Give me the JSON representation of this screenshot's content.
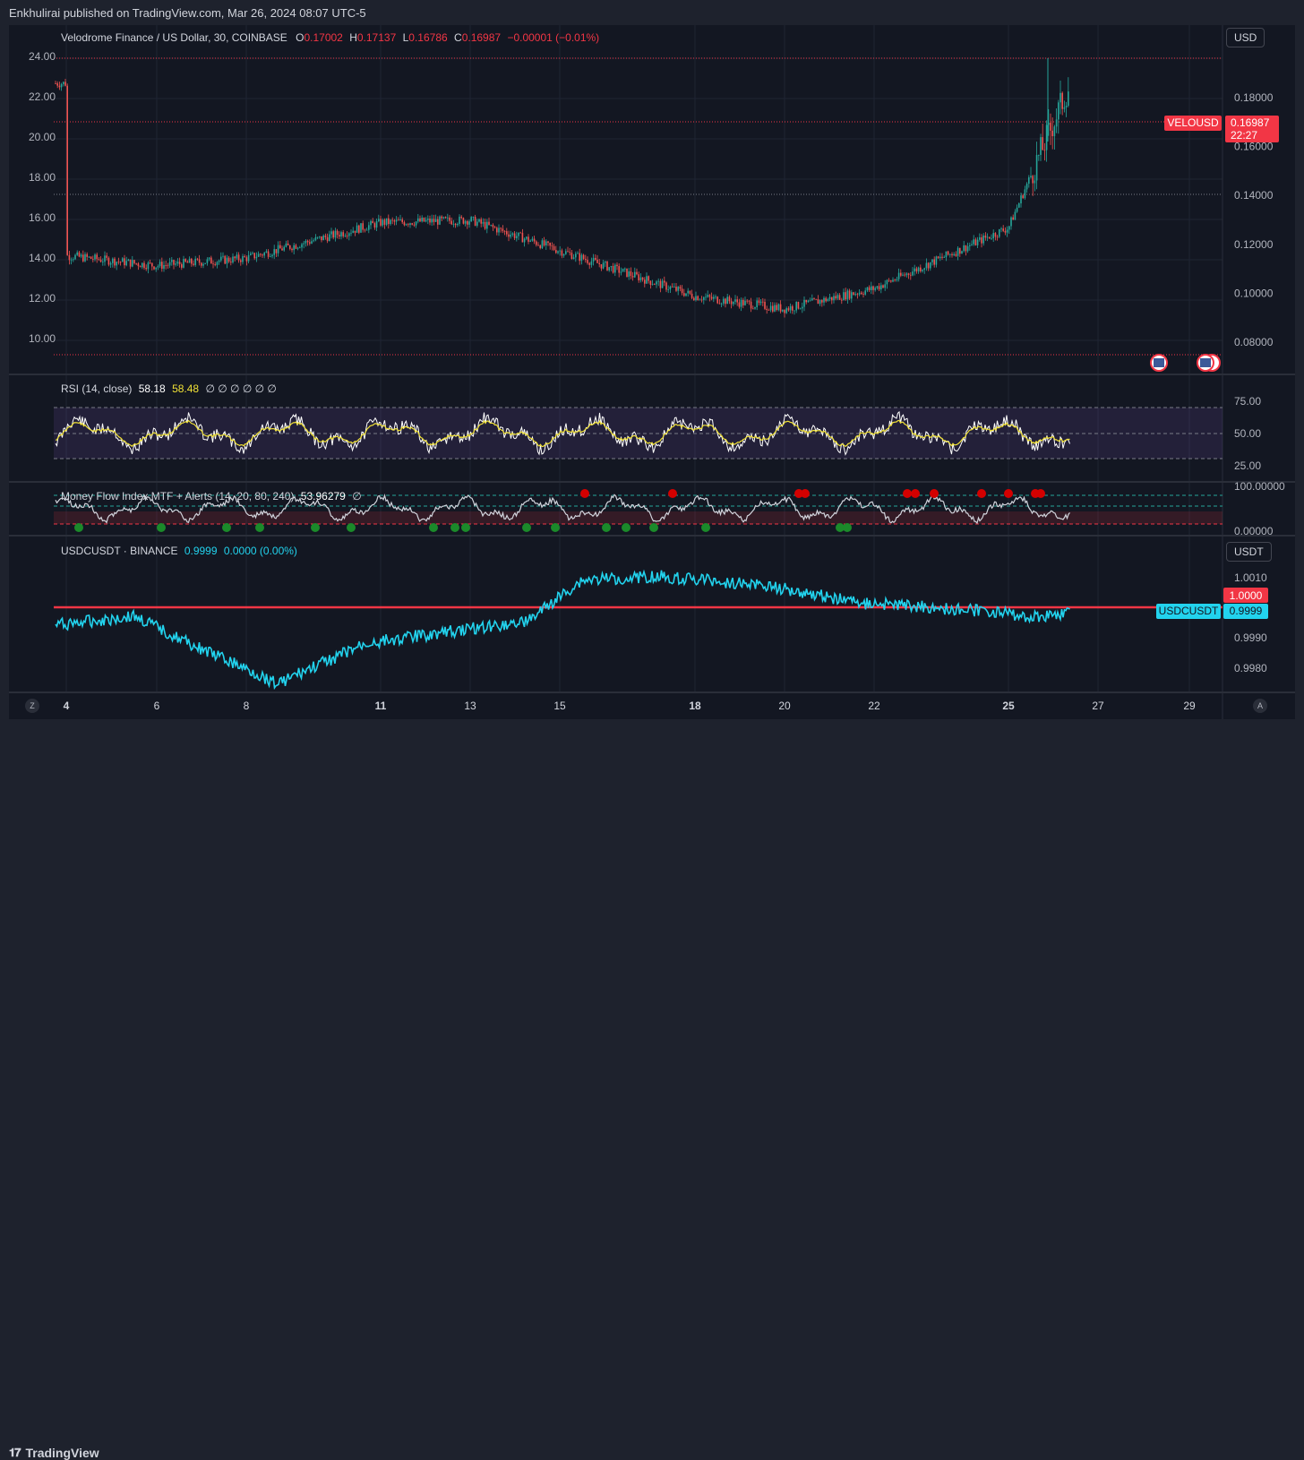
{
  "header": {
    "published": "Enkhulirai published on TradingView.com, Mar 26, 2024 08:07 UTC-5"
  },
  "footer": {
    "brand": "TradingView"
  },
  "colors": {
    "up": "#26a69a",
    "down": "#ef5350",
    "rsi": "#ffffff",
    "rsi_ma": "#f0e136",
    "usdc": "#22d3ee",
    "level": "#f23645"
  },
  "main": {
    "legend": {
      "symbol": "Velodrome Finance / US Dollar, 30, COINBASE",
      "o_lbl": "O",
      "o": "0.17002",
      "h_lbl": "H",
      "h": "0.17137",
      "l_lbl": "L",
      "l": "0.16786",
      "c_lbl": "C",
      "c": "0.16987",
      "chg": "−0.00001 (−0.01%)"
    },
    "currency_button": "USD",
    "left_ticks": [
      "24.00",
      "22.00",
      "20.00",
      "18.00",
      "16.00",
      "14.00",
      "12.00",
      "10.00"
    ],
    "right_ticks": [
      "0.18000",
      "0.16000",
      "0.14000",
      "0.12000",
      "0.10000",
      "0.08000"
    ],
    "symbol_tag": "VELOUSD",
    "price_tag": "0.16987",
    "countdown": "22:27"
  },
  "rsi": {
    "legend": "RSI (14, close)",
    "value": "58.18",
    "ma_value": "58.48",
    "extra": "∅ ∅ ∅ ∅ ∅ ∅",
    "ticks": [
      "75.00",
      "50.00",
      "25.00"
    ]
  },
  "mfi": {
    "legend": "Money Flow Index MTF + Alerts (14, 20, 80, 240)",
    "value": "53.96279",
    "extra": "∅",
    "ticks": [
      "100.00000",
      "0.00000"
    ]
  },
  "usdc": {
    "legend_symbol": "USDCUSDT · BINANCE",
    "value": "0.9999",
    "chg": "0.0000 (0.00%)",
    "currency_button": "USDT",
    "ticks": [
      "1.0010",
      "0.9990",
      "0.9980"
    ],
    "level_tag": "1.0000",
    "symbol_tag": "USDCUSDT",
    "price_tag": "0.9999"
  },
  "time_axis": {
    "labels": [
      "4",
      "6",
      "8",
      "11",
      "13",
      "15",
      "18",
      "20",
      "22",
      "25",
      "27",
      "29"
    ],
    "bold": [
      "4",
      "11",
      "18",
      "25"
    ],
    "left_btn": "Z",
    "right_btn": "A"
  },
  "chart_data": [
    {
      "type": "candlestick",
      "title": "Velodrome Finance / US Dollar, 30, COINBASE",
      "ylim": [
        0.07,
        0.2
      ],
      "series": [
        {
          "name": "VELOUSD",
          "x": [
            "4",
            "6",
            "8",
            "11",
            "13",
            "15",
            "18",
            "20",
            "22",
            "25",
            "26"
          ],
          "close": [
            0.102,
            0.098,
            0.101,
            0.115,
            0.116,
            0.104,
            0.086,
            0.081,
            0.089,
            0.113,
            0.16987
          ]
        }
      ]
    },
    {
      "type": "line",
      "title": "RSI (14, close)",
      "ylim": [
        15,
        85
      ],
      "levels": [
        70,
        50,
        30
      ],
      "series": [
        {
          "name": "RSI",
          "last": 58.18
        },
        {
          "name": "RSI MA",
          "last": 58.48
        }
      ]
    },
    {
      "type": "line",
      "title": "Money Flow Index MTF + Alerts (14, 20, 80, 240)",
      "ylim": [
        0,
        100
      ],
      "levels": [
        80,
        20
      ],
      "series": [
        {
          "name": "MFI",
          "last": 53.96279
        }
      ]
    },
    {
      "type": "line",
      "title": "USDCUSDT · BINANCE",
      "ylim": [
        0.9975,
        1.0015
      ],
      "levels": [
        1.0
      ],
      "series": [
        {
          "name": "USDCUSDT",
          "last": 0.9999
        }
      ]
    }
  ]
}
